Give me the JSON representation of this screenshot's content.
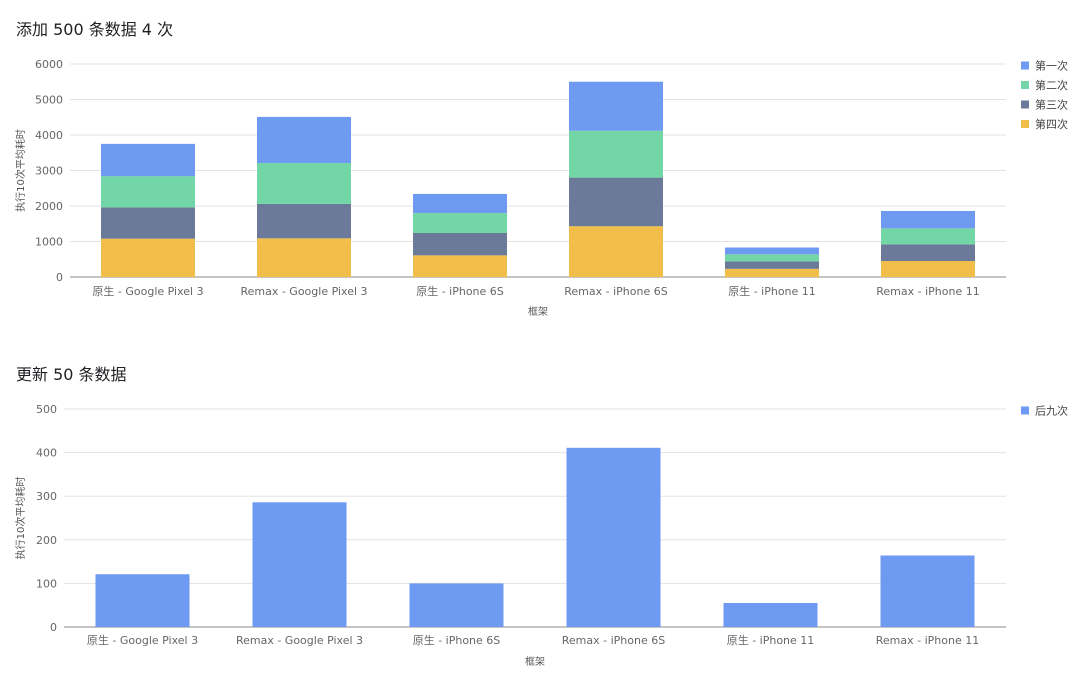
{
  "charts": [
    {
      "title": "添加 500 条数据 4 次",
      "chart_data": {
        "type": "bar",
        "stacked": true,
        "title": "添加 500 条数据 4 次",
        "xlabel": "框架",
        "ylabel": "执行10次平均耗时",
        "ylim": [
          0,
          6000
        ],
        "yticks": [
          0,
          1000,
          2000,
          3000,
          4000,
          5000,
          6000
        ],
        "grid": true,
        "legend_position": "right",
        "categories": [
          "原生 - Google Pixel 3",
          "Remax - Google Pixel 3",
          "原生 - iPhone 6S",
          "Remax - iPhone 6S",
          "原生 - iPhone 11",
          "Remax - iPhone 11"
        ],
        "series": [
          {
            "name": "第四次",
            "color": "#f1be4a",
            "values": [
              1080,
              1090,
              610,
              1430,
              230,
              450
            ]
          },
          {
            "name": "第三次",
            "color": "#6b7a99",
            "values": [
              880,
              970,
              630,
              1370,
              210,
              470
            ]
          },
          {
            "name": "第二次",
            "color": "#72d6a6",
            "values": [
              880,
              1150,
              560,
              1320,
              200,
              450
            ]
          },
          {
            "name": "第一次",
            "color": "#6e9af2",
            "values": [
              910,
              1300,
              540,
              1380,
              190,
              490
            ]
          }
        ],
        "legend_order": [
          "第一次",
          "第二次",
          "第三次",
          "第四次"
        ]
      }
    },
    {
      "title": "更新 50 条数据",
      "chart_data": {
        "type": "bar",
        "stacked": false,
        "title": "更新 50 条数据",
        "xlabel": "框架",
        "ylabel": "执行10次平均耗时",
        "ylim": [
          0,
          500
        ],
        "yticks": [
          0,
          100,
          200,
          300,
          400,
          500
        ],
        "grid": true,
        "legend_position": "right",
        "categories": [
          "原生 - Google Pixel 3",
          "Remax - Google Pixel 3",
          "原生 - iPhone 6S",
          "Remax - iPhone 6S",
          "原生 - iPhone 11",
          "Remax - iPhone 11"
        ],
        "series": [
          {
            "name": "后九次",
            "color": "#6e9af2",
            "values": [
              121,
              286,
              100,
              411,
              55,
              164
            ]
          }
        ],
        "legend_order": [
          "后九次"
        ]
      }
    }
  ]
}
